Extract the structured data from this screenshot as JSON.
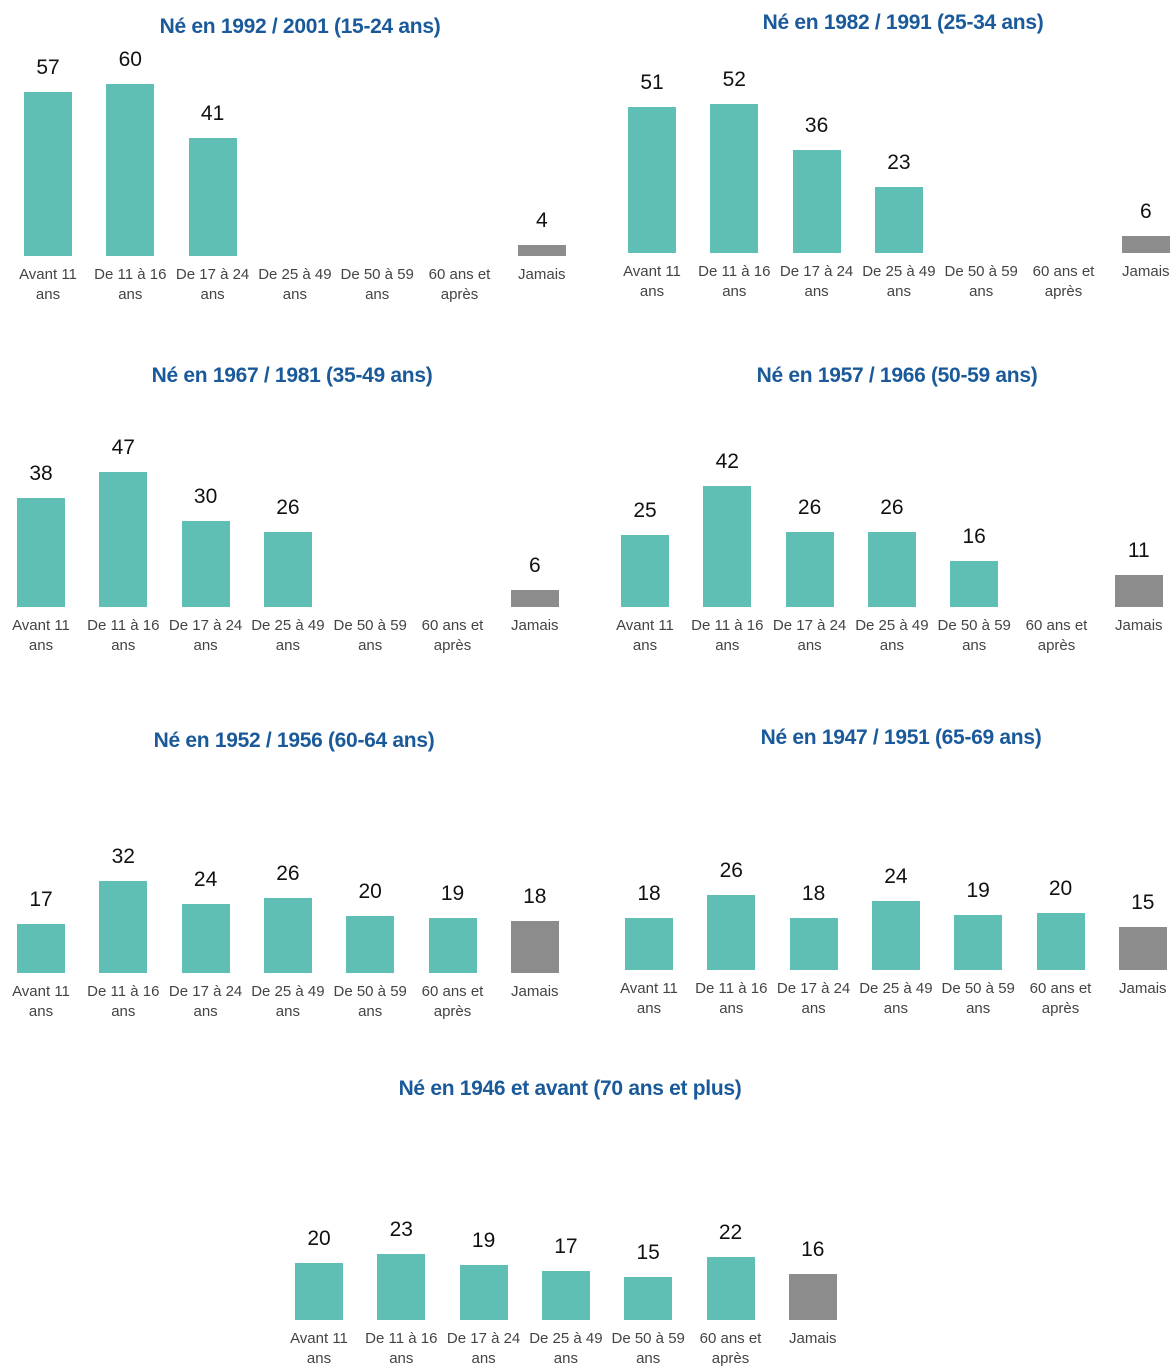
{
  "chart_data": [
    {
      "type": "bar",
      "title": "Né en 1992 / 2001 (15-24 ans)",
      "categories": [
        "Avant 11 ans",
        "De 11 à 16 ans",
        "De 17 à 24 ans",
        "De 25 à 49 ans",
        "De 50 à 59 ans",
        "60 ans et après",
        "Jamais"
      ],
      "values": [
        57,
        60,
        41,
        null,
        null,
        null,
        4
      ],
      "colors": [
        "#5fbfb4",
        "#5fbfb4",
        "#5fbfb4",
        "#5fbfb4",
        "#5fbfb4",
        "#5fbfb4",
        "#8c8c8c"
      ]
    },
    {
      "type": "bar",
      "title": "Né en 1982 / 1991 (25-34 ans)",
      "categories": [
        "Avant 11 ans",
        "De 11 à 16 ans",
        "De 17 à 24 ans",
        "De 25 à 49 ans",
        "De 50 à 59 ans",
        "60 ans et après",
        "Jamais"
      ],
      "values": [
        51,
        52,
        36,
        23,
        null,
        null,
        6
      ],
      "colors": [
        "#5fbfb4",
        "#5fbfb4",
        "#5fbfb4",
        "#5fbfb4",
        "#5fbfb4",
        "#5fbfb4",
        "#8c8c8c"
      ]
    },
    {
      "type": "bar",
      "title": "Né en 1967 / 1981 (35-49 ans)",
      "categories": [
        "Avant 11 ans",
        "De 11 à 16 ans",
        "De 17 à 24 ans",
        "De 25 à 49 ans",
        "De 50 à 59 ans",
        "60 ans et après",
        "Jamais"
      ],
      "values": [
        38,
        47,
        30,
        26,
        null,
        null,
        6
      ],
      "colors": [
        "#5fbfb4",
        "#5fbfb4",
        "#5fbfb4",
        "#5fbfb4",
        "#5fbfb4",
        "#5fbfb4",
        "#8c8c8c"
      ]
    },
    {
      "type": "bar",
      "title": "Né en 1957 / 1966 (50-59 ans)",
      "categories": [
        "Avant 11 ans",
        "De 11 à 16 ans",
        "De 17 à 24 ans",
        "De 25 à 49 ans",
        "De 50 à 59 ans",
        "60 ans et après",
        "Jamais"
      ],
      "values": [
        25,
        42,
        26,
        26,
        16,
        null,
        11
      ],
      "colors": [
        "#5fbfb4",
        "#5fbfb4",
        "#5fbfb4",
        "#5fbfb4",
        "#5fbfb4",
        "#5fbfb4",
        "#8c8c8c"
      ]
    },
    {
      "type": "bar",
      "title": "Né en 1952 / 1956 (60-64 ans)",
      "categories": [
        "Avant 11 ans",
        "De 11 à 16 ans",
        "De 17 à 24 ans",
        "De 25 à 49 ans",
        "De 50 à 59 ans",
        "60 ans et après",
        "Jamais"
      ],
      "values": [
        17,
        32,
        24,
        26,
        20,
        19,
        18
      ],
      "colors": [
        "#5fbfb4",
        "#5fbfb4",
        "#5fbfb4",
        "#5fbfb4",
        "#5fbfb4",
        "#5fbfb4",
        "#8c8c8c"
      ]
    },
    {
      "type": "bar",
      "title": "Né en 1947 / 1951 (65-69 ans)",
      "categories": [
        "Avant 11 ans",
        "De 11 à 16 ans",
        "De 17 à 24 ans",
        "De 25 à 49 ans",
        "De 50 à 59 ans",
        "60 ans et après",
        "Jamais"
      ],
      "values": [
        18,
        26,
        18,
        24,
        19,
        20,
        15
      ],
      "colors": [
        "#5fbfb4",
        "#5fbfb4",
        "#5fbfb4",
        "#5fbfb4",
        "#5fbfb4",
        "#5fbfb4",
        "#8c8c8c"
      ]
    },
    {
      "type": "bar",
      "title": "Né en 1946 et avant (70 ans et plus)",
      "categories": [
        "Avant 11 ans",
        "De 11 à 16 ans",
        "De 17 à 24 ans",
        "De 25 à 49 ans",
        "De 50 à 59 ans",
        "60 ans et après",
        "Jamais"
      ],
      "values": [
        20,
        23,
        19,
        17,
        15,
        22,
        16
      ],
      "colors": [
        "#5fbfb4",
        "#5fbfb4",
        "#5fbfb4",
        "#5fbfb4",
        "#5fbfb4",
        "#5fbfb4",
        "#8c8c8c"
      ]
    }
  ]
}
